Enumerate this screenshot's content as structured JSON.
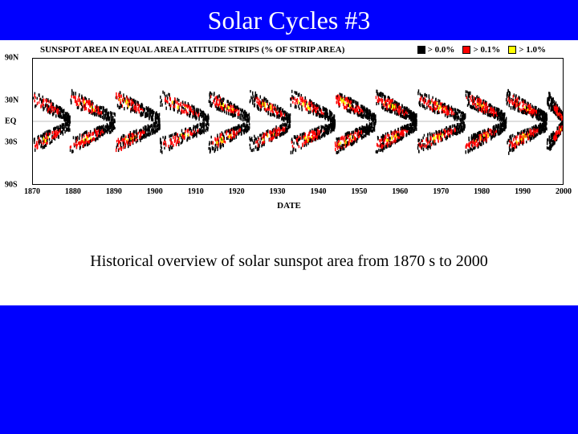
{
  "title": "Solar Cycles #3",
  "caption": "Historical overview of solar sunspot area from 1870 s to 2000",
  "chart": {
    "type": "butterfly-heatmap",
    "header_text": "SUNSPOT AREA IN EQUAL AREA LATITUDE STRIPS (% OF STRIP AREA)",
    "xaxis_label": "DATE",
    "background_color": "#ffffff",
    "colors": {
      "low": "#000000",
      "mid": "#ff0000",
      "high": "#ffff00"
    },
    "legend": [
      {
        "label": "> 0.0%",
        "color": "#000000"
      },
      {
        "label": "> 0.1%",
        "color": "#ff0000"
      },
      {
        "label": "> 1.0%",
        "color": "#ffff00"
      }
    ],
    "xlim": [
      1870,
      2000
    ],
    "xticks": [
      1870,
      1880,
      1890,
      1900,
      1910,
      1920,
      1930,
      1940,
      1950,
      1960,
      1970,
      1980,
      1990,
      2000
    ],
    "yticks": [
      {
        "label": "90N",
        "value": 90
      },
      {
        "label": "30N",
        "value": 30
      },
      {
        "label": "EQ",
        "value": 0
      },
      {
        "label": "30S",
        "value": -30
      },
      {
        "label": "90S",
        "value": -90
      }
    ],
    "ylim": [
      -90,
      90
    ],
    "cycles": [
      {
        "start": 1870,
        "max": 1873,
        "end": 1879,
        "intensity": 0.6
      },
      {
        "start": 1879,
        "max": 1883,
        "end": 1890,
        "intensity": 0.7
      },
      {
        "start": 1890,
        "max": 1893,
        "end": 1901,
        "intensity": 0.75
      },
      {
        "start": 1901,
        "max": 1906,
        "end": 1913,
        "intensity": 0.6
      },
      {
        "start": 1913,
        "max": 1917,
        "end": 1923,
        "intensity": 0.7
      },
      {
        "start": 1923,
        "max": 1928,
        "end": 1933,
        "intensity": 0.65
      },
      {
        "start": 1933,
        "max": 1937,
        "end": 1944,
        "intensity": 0.8
      },
      {
        "start": 1944,
        "max": 1947,
        "end": 1954,
        "intensity": 0.85
      },
      {
        "start": 1954,
        "max": 1958,
        "end": 1964,
        "intensity": 0.95
      },
      {
        "start": 1964,
        "max": 1969,
        "end": 1976,
        "intensity": 0.8
      },
      {
        "start": 1976,
        "max": 1980,
        "end": 1986,
        "intensity": 0.85
      },
      {
        "start": 1986,
        "max": 1990,
        "end": 1996,
        "intensity": 0.9
      },
      {
        "start": 1996,
        "max": 1999,
        "end": 2000,
        "intensity": 0.5
      }
    ],
    "header_fontsize": 11,
    "tick_fontsize": 10,
    "caption_fontsize": 20,
    "title_fontsize": 32
  }
}
